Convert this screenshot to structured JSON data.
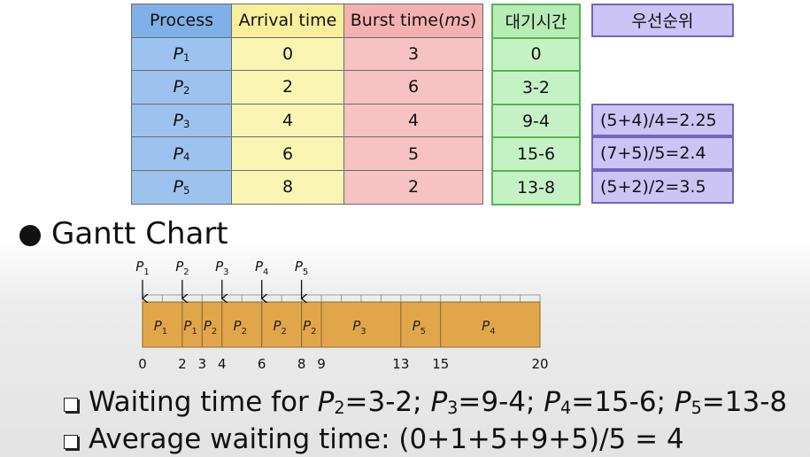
{
  "table": {
    "headers": {
      "process": "Process",
      "arrival": "Arrival time",
      "burst_prefix": "Burst time(",
      "burst_unit": "ms",
      "burst_suffix": ")",
      "wait": "대기시간",
      "priority": "우선순위"
    },
    "rows": [
      {
        "proc": "P",
        "sub": "1",
        "arrival": "0",
        "burst": "3",
        "wait": "0",
        "priority": ""
      },
      {
        "proc": "P",
        "sub": "2",
        "arrival": "2",
        "burst": "6",
        "wait": "3-2",
        "priority": ""
      },
      {
        "proc": "P",
        "sub": "3",
        "arrival": "4",
        "burst": "4",
        "wait": "9-4",
        "priority": "(5+4)/4=2.25"
      },
      {
        "proc": "P",
        "sub": "4",
        "arrival": "6",
        "burst": "5",
        "wait": "15-6",
        "priority": "(7+5)/5=2.4"
      },
      {
        "proc": "P",
        "sub": "5",
        "arrival": "8",
        "burst": "2",
        "wait": "13-8",
        "priority": "(5+2)/2=3.5"
      }
    ]
  },
  "gantt": {
    "title": "Gantt Chart",
    "total_time": 20,
    "arrivals": [
      {
        "label": "P",
        "sub": "1",
        "time": 0
      },
      {
        "label": "P",
        "sub": "2",
        "time": 2
      },
      {
        "label": "P",
        "sub": "3",
        "time": 4
      },
      {
        "label": "P",
        "sub": "4",
        "time": 6
      },
      {
        "label": "P",
        "sub": "5",
        "time": 8
      }
    ],
    "segments": [
      {
        "label": "P",
        "sub": "1",
        "start": 0,
        "end": 2
      },
      {
        "label": "P",
        "sub": "1",
        "start": 2,
        "end": 3
      },
      {
        "label": "P",
        "sub": "2",
        "start": 3,
        "end": 4
      },
      {
        "label": "P",
        "sub": "2",
        "start": 4,
        "end": 6
      },
      {
        "label": "P",
        "sub": "2",
        "start": 6,
        "end": 8
      },
      {
        "label": "P",
        "sub": "2",
        "start": 8,
        "end": 9
      },
      {
        "label": "P",
        "sub": "3",
        "start": 9,
        "end": 13
      },
      {
        "label": "P",
        "sub": "5",
        "start": 13,
        "end": 15
      },
      {
        "label": "P",
        "sub": "4",
        "start": 15,
        "end": 20
      }
    ],
    "ticks": [
      "0",
      "2",
      "3",
      "4",
      "6",
      "8",
      "9",
      "13",
      "15",
      "20"
    ],
    "bar_color": "#e2a64a",
    "bar_stroke": "#8a6a2e"
  },
  "notes": {
    "waiting": {
      "prefix": "Waiting time for ",
      "items": [
        {
          "p": "P",
          "sub": "2",
          "val": "=3-2;"
        },
        {
          "p": "P",
          "sub": "3",
          "val": "=9-4;"
        },
        {
          "p": "P",
          "sub": "4",
          "val": "=15-6;"
        },
        {
          "p": "P",
          "sub": "5",
          "val": "=13-8"
        }
      ]
    },
    "average": "Average waiting time: (0+1+5+9+5)/5 = 4"
  }
}
